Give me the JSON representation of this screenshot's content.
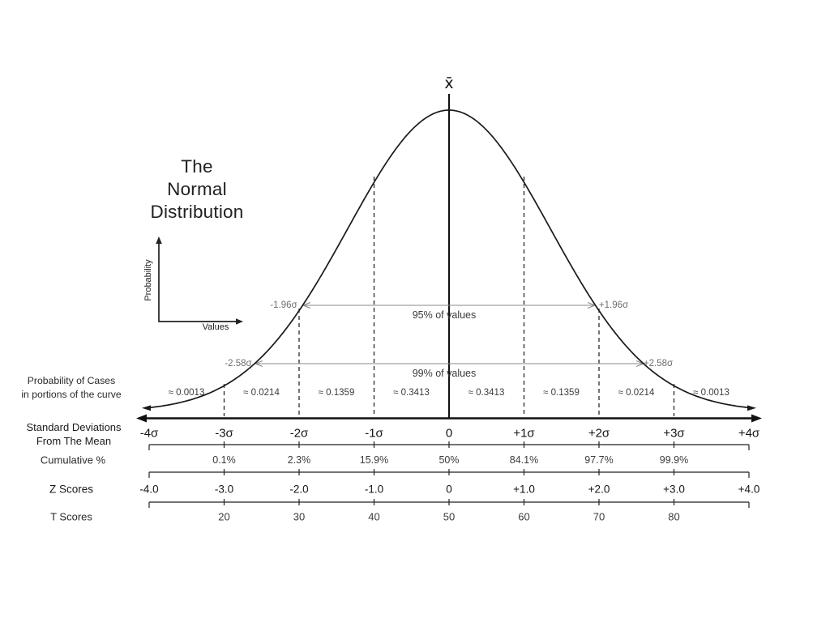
{
  "title": {
    "lines": [
      "The",
      "Normal",
      "Distribution"
    ]
  },
  "mini_axis": {
    "y_label": "Probability",
    "x_label": "Values"
  },
  "mean_symbol": "x̄",
  "ci_lines": {
    "ci95": {
      "left_label": "-1.96σ",
      "right_label": "+1.96σ",
      "center_label": "95% of values"
    },
    "ci99": {
      "left_label": "-2.58σ",
      "right_label": "+2.58σ",
      "center_label": "99% of values"
    }
  },
  "rows": {
    "probability": {
      "label_lines": [
        "Probability of Cases",
        "in portions of the curve"
      ],
      "values": [
        "≈ 0.0013",
        "≈ 0.0214",
        "≈ 0.1359",
        "≈ 0.3413",
        "≈ 0.3413",
        "≈ 0.1359",
        "≈ 0.0214",
        "≈ 0.0013"
      ]
    },
    "sd": {
      "label_lines": [
        "Standard Deviations",
        "From The Mean"
      ],
      "values": [
        "-4σ",
        "-3σ",
        "-2σ",
        "-1σ",
        "0",
        "+1σ",
        "+2σ",
        "+3σ",
        "+4σ"
      ]
    },
    "cumulative": {
      "label": "Cumulative %",
      "values": [
        "0.1%",
        "2.3%",
        "15.9%",
        "50%",
        "84.1%",
        "97.7%",
        "99.9%"
      ]
    },
    "z": {
      "label": "Z Scores",
      "values": [
        "-4.0",
        "-3.0",
        "-2.0",
        "-1.0",
        "0",
        "+1.0",
        "+2.0",
        "+3.0",
        "+4.0"
      ]
    },
    "t": {
      "label": "T Scores",
      "values": [
        "20",
        "30",
        "40",
        "50",
        "60",
        "70",
        "80"
      ]
    }
  },
  "chart_data": {
    "type": "area",
    "title": "The Normal Distribution",
    "xlabel": "Values",
    "ylabel": "Probability",
    "curve": "standard normal bell curve, mean marked x̄, tails from -4σ to +4σ",
    "sigma_ticks": [
      -4,
      -3,
      -2,
      -1,
      0,
      1,
      2,
      3,
      4
    ],
    "probability_of_cases_per_portion": [
      0.0013,
      0.0214,
      0.1359,
      0.3413,
      0.3413,
      0.1359,
      0.0214,
      0.0013
    ],
    "cumulative_percent": {
      "x_sigma": [
        -3,
        -2,
        -1,
        0,
        1,
        2,
        3
      ],
      "values": [
        0.1,
        2.3,
        15.9,
        50,
        84.1,
        97.7,
        99.9
      ]
    },
    "z_scores": [
      -4.0,
      -3.0,
      -2.0,
      -1.0,
      0,
      1.0,
      2.0,
      3.0,
      4.0
    ],
    "t_scores": {
      "x_sigma": [
        -3,
        -2,
        -1,
        0,
        1,
        2,
        3
      ],
      "values": [
        20,
        30,
        40,
        50,
        60,
        70,
        80
      ]
    },
    "confidence_intervals": [
      {
        "percent_of_values": 95,
        "sigma_bound": 1.96
      },
      {
        "percent_of_values": 99,
        "sigma_bound": 2.58
      }
    ],
    "dashed_guides_at_sigma": [
      -3,
      -2,
      -1,
      1,
      2,
      3
    ],
    "legend_position": "none",
    "grid": false,
    "colors": {
      "curve": "#1a1a1a",
      "axis": "#111111",
      "ci_line": "#8a8a8a",
      "background": "#ffffff"
    }
  }
}
